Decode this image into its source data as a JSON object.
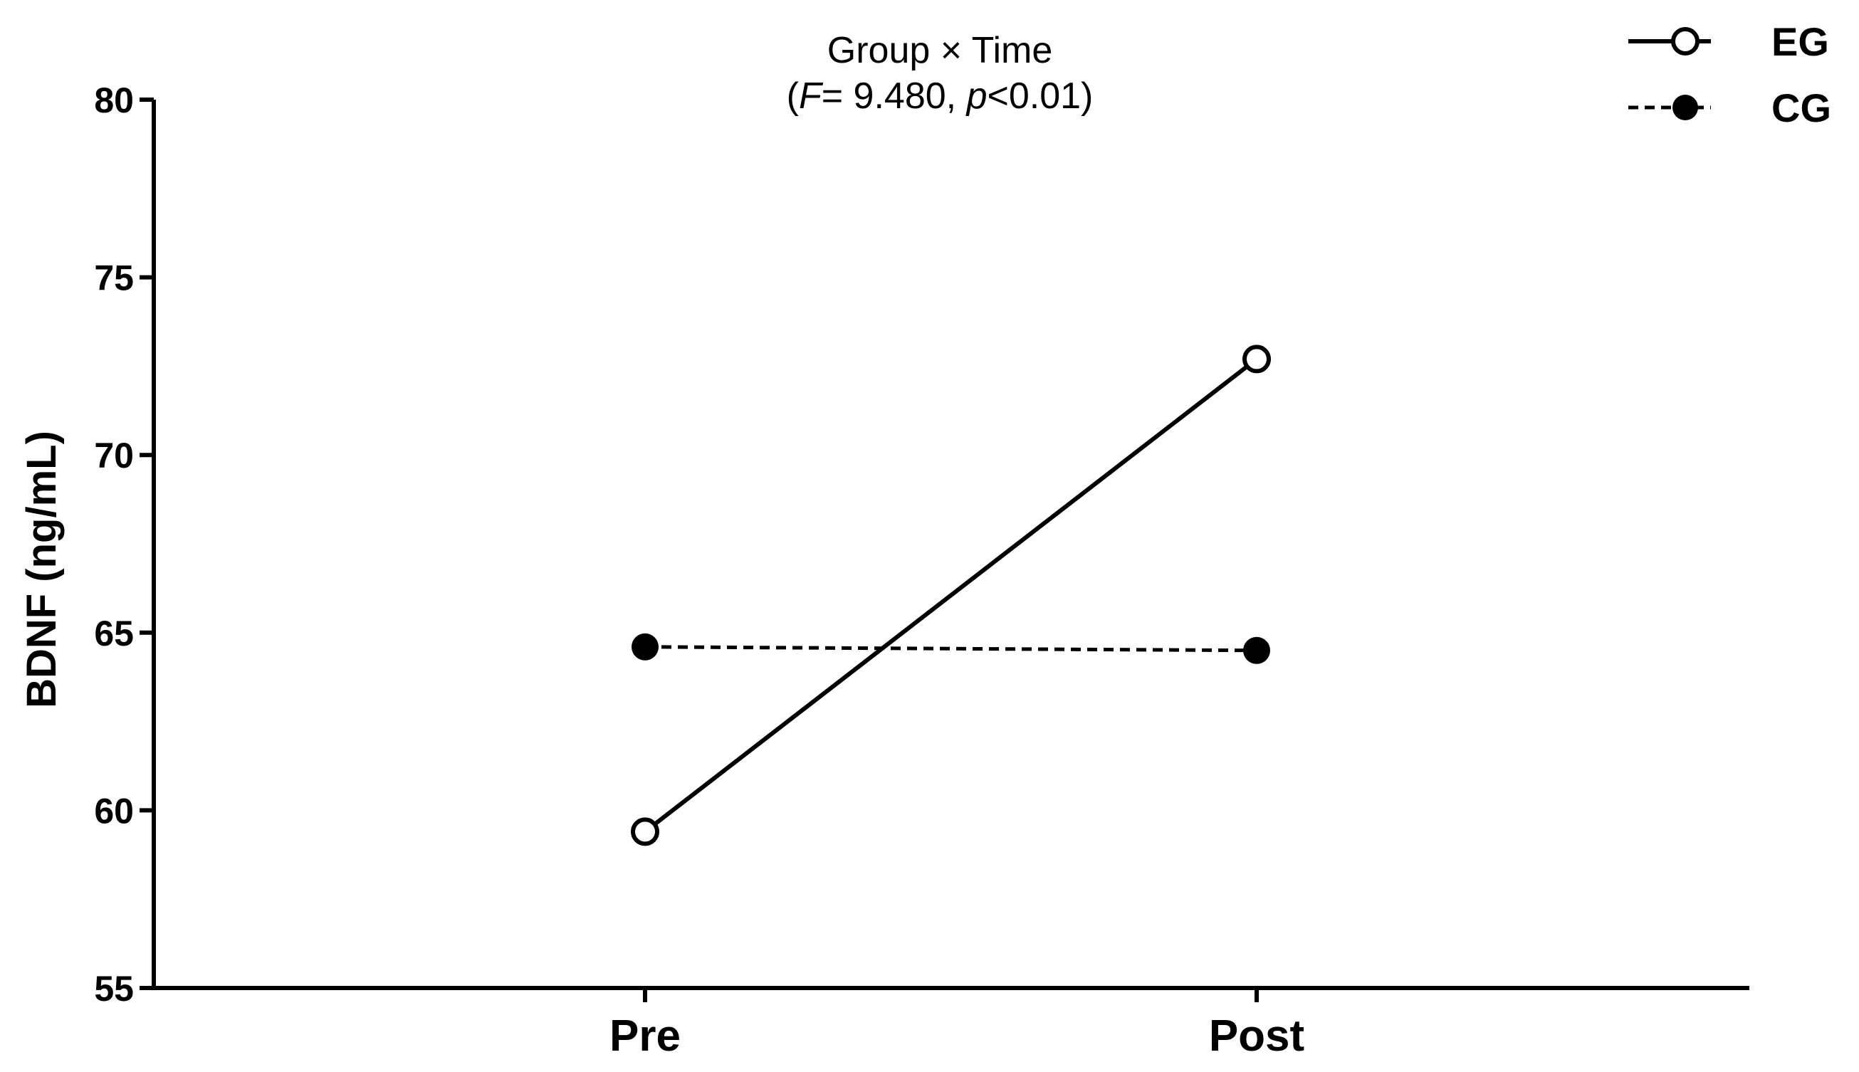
{
  "chart_data": {
    "type": "line",
    "title": "Group × Time",
    "subtitle": {
      "open": "(",
      "f_symbol": "F",
      "f_value": "= 9.480, ",
      "p_symbol": "p",
      "p_value": "<0.01)"
    },
    "xlabel": "",
    "ylabel": "BDNF (ng/mL)",
    "categories": [
      "Pre",
      "Post"
    ],
    "ylim": [
      55,
      80
    ],
    "yticks": [
      "55",
      "60",
      "65",
      "70",
      "75",
      "80"
    ],
    "grid": false,
    "legend_position": "top-right",
    "series": [
      {
        "name": "EG",
        "values": [
          59.4,
          72.7
        ],
        "line_style": "solid",
        "marker": "open-circle"
      },
      {
        "name": "CG",
        "values": [
          64.6,
          64.5
        ],
        "line_style": "dashed",
        "marker": "filled-circle"
      }
    ]
  }
}
